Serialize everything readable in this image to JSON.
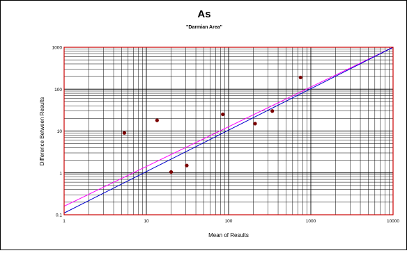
{
  "chart_data": {
    "type": "scatter",
    "title": "As",
    "subtitle": "\"Darmian Area\"",
    "xlabel": "Mean of Results",
    "ylabel": "Difference Between Results",
    "x_scale": "log",
    "y_scale": "log",
    "xlim": [
      1,
      10000
    ],
    "ylim": [
      0.1,
      1000
    ],
    "x_ticks": [
      "1",
      "10",
      "100",
      "1000",
      "10000"
    ],
    "y_ticks": [
      "0.1",
      "1",
      "10",
      "100",
      "1000"
    ],
    "grid": true,
    "points": [
      {
        "x": 5.4,
        "y": 9
      },
      {
        "x": 13.5,
        "y": 18
      },
      {
        "x": 20,
        "y": 1.05
      },
      {
        "x": 31,
        "y": 1.5
      },
      {
        "x": 85,
        "y": 25
      },
      {
        "x": 210,
        "y": 15
      },
      {
        "x": 340,
        "y": 30
      },
      {
        "x": 750,
        "y": 190
      }
    ],
    "lines": [
      {
        "color": "#ff00ff",
        "x": [
          1,
          10000
        ],
        "y": [
          0.16,
          1000
        ]
      },
      {
        "color": "#0000cc",
        "x": [
          1,
          10000
        ],
        "y": [
          0.11,
          1000
        ]
      }
    ],
    "colors": {
      "points": "#7a0000",
      "plot_border": "#cc0000",
      "grid": "#000000"
    }
  }
}
